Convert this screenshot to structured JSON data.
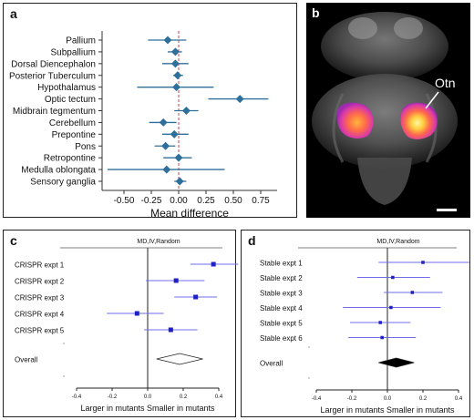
{
  "panels": {
    "a": {
      "letter": "a"
    },
    "b": {
      "letter": "b",
      "label": "Otn"
    },
    "c": {
      "letter": "c"
    },
    "d": {
      "letter": "d"
    }
  },
  "chart_data": [
    {
      "id": "a",
      "type": "scatter",
      "title": "",
      "xlabel": "Mean difference",
      "ylabel": "",
      "xlim": [
        -0.7,
        0.9
      ],
      "xticks": [
        "-0.50",
        "-0.25",
        "0.00",
        "0.25",
        "0.50",
        "0.75"
      ],
      "xtick_values": [
        -0.5,
        -0.25,
        0.0,
        0.25,
        0.5,
        0.75
      ],
      "refline": 0.0,
      "categories": [
        "Pallium",
        "Subpallium",
        "Dorsal Diencephalon",
        "Posterior Tuberculum",
        "Hypothalamus",
        "Optic tectum",
        "Midbrain tegmentum",
        "Cerebellum",
        "Prepontine",
        "Pons",
        "Retropontine",
        "Medulla oblongata",
        "Sensory ganglia"
      ],
      "values": [
        -0.1,
        -0.03,
        -0.03,
        -0.01,
        -0.02,
        0.56,
        0.07,
        -0.14,
        -0.04,
        -0.12,
        0.0,
        -0.11,
        0.01
      ],
      "ci_low": [
        -0.28,
        -0.1,
        -0.15,
        -0.05,
        -0.38,
        0.27,
        -0.04,
        -0.27,
        -0.15,
        -0.22,
        -0.14,
        -0.65,
        -0.04
      ],
      "ci_high": [
        0.07,
        0.03,
        0.09,
        0.04,
        0.32,
        0.82,
        0.18,
        -0.02,
        0.09,
        -0.03,
        0.12,
        0.42,
        0.07
      ],
      "colors": {
        "marker": "#2f6f9b",
        "refline": "#d0424f"
      }
    },
    {
      "id": "c",
      "type": "scatter",
      "title": "MD,IV,Random",
      "xlabel": "Larger in mutants Smaller in mutants",
      "xlim": [
        -0.4,
        0.4
      ],
      "xticks": [
        "-0.4",
        "-0.2",
        "0.0",
        "0.2",
        "0.4"
      ],
      "xtick_values": [
        -0.4,
        -0.2,
        0.0,
        0.2,
        0.4
      ],
      "categories": [
        "CRISPR expt 1",
        "CRISPR expt 2",
        "CRISPR expt 3",
        "CRISPR expt 4",
        "CRISPR expt 5"
      ],
      "values": [
        0.37,
        0.16,
        0.27,
        -0.06,
        0.13
      ],
      "ci_low": [
        0.24,
        -0.01,
        0.15,
        -0.23,
        -0.02
      ],
      "ci_high": [
        0.51,
        0.32,
        0.39,
        0.09,
        0.28
      ],
      "overall_label": "Overall",
      "overall": {
        "value": 0.18,
        "ci_low": 0.05,
        "ci_high": 0.31
      },
      "colors": {
        "marker": "#1f1fc8",
        "line": "#6e6ee8",
        "overall": "#ffffff"
      }
    },
    {
      "id": "d",
      "type": "scatter",
      "title": "MD,IV,Random",
      "xlabel": "Larger in mutants Smaller in mutants",
      "xlim": [
        -0.4,
        0.4
      ],
      "xticks": [
        "-0.4",
        "-0.2",
        "0.0",
        "0.2",
        "0.4"
      ],
      "xtick_values": [
        -0.4,
        -0.2,
        0.0,
        0.2,
        0.4
      ],
      "categories": [
        "Stable expt 1",
        "Stable expt 2",
        "Stable expt 3",
        "Stable expt 4",
        "Stable expt 5",
        "Stable expt 6"
      ],
      "values": [
        0.2,
        0.03,
        0.14,
        0.02,
        -0.04,
        -0.03
      ],
      "ci_low": [
        -0.05,
        -0.17,
        -0.02,
        -0.25,
        -0.21,
        -0.22
      ],
      "ci_high": [
        0.46,
        0.24,
        0.31,
        0.3,
        0.13,
        0.16
      ],
      "overall_label": "Overall",
      "overall": {
        "value": 0.05,
        "ci_low": -0.05,
        "ci_high": 0.15
      },
      "colors": {
        "marker": "#1f1fc8",
        "line": "#6e6ee8",
        "overall": "#000000"
      }
    }
  ]
}
